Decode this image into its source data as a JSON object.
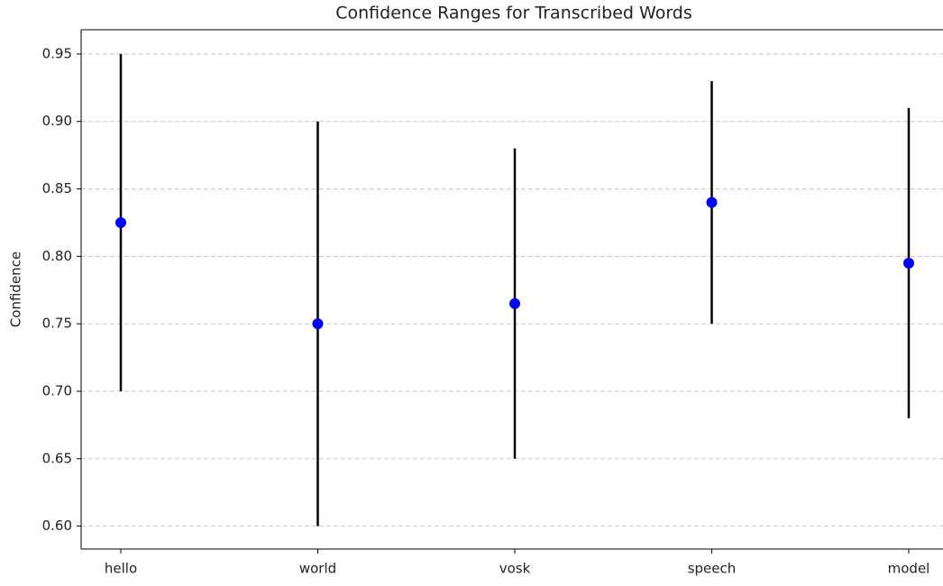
{
  "chart_data": {
    "type": "range_point",
    "title": "Confidence Ranges for Transcribed Words",
    "ylabel": "Confidence",
    "categories": [
      "hello",
      "world",
      "vosk",
      "speech",
      "model"
    ],
    "values": [
      0.825,
      0.75,
      0.765,
      0.84,
      0.795
    ],
    "lows": [
      0.7,
      0.6,
      0.65,
      0.75,
      0.68
    ],
    "highs": [
      0.95,
      0.9,
      0.88,
      0.93,
      0.91
    ],
    "point_color": "#0000ff",
    "range_color": "#000000",
    "ylim": [
      0.583,
      0.968
    ],
    "yticks": [
      {
        "value": 0.6,
        "label": "0.60"
      },
      0.65,
      {
        "value": 0.7,
        "label": "0.70"
      },
      0.75,
      {
        "value": 0.8,
        "label": "0.80"
      },
      0.85,
      {
        "value": 0.9,
        "label": "0.90"
      },
      0.95
    ],
    "grid": true
  }
}
